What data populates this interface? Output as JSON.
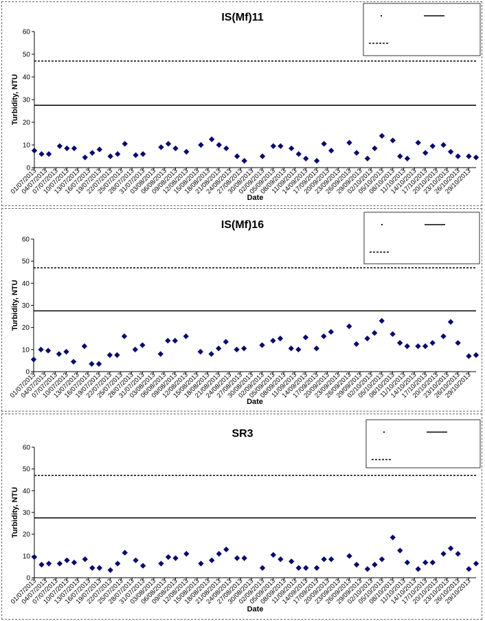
{
  "chart_data": [
    {
      "type": "scatter",
      "title": "IS(Mf)11",
      "xlabel": "Date",
      "ylabel": "Turbidity, NTU",
      "ylim": [
        0,
        60
      ],
      "yticks": [
        0,
        10,
        20,
        30,
        40,
        50,
        60
      ],
      "xlim": [
        "01/07/2013",
        "31/10/2013"
      ],
      "xtick_labels": [
        "01/07/2013",
        "04/07/2013",
        "07/07/2013",
        "10/07/2013",
        "13/07/2013",
        "16/07/2013",
        "19/07/2013",
        "22/07/2013",
        "25/07/2013",
        "28/07/2013",
        "31/07/2013",
        "03/08/2013",
        "06/08/2013",
        "09/08/2013",
        "12/08/2013",
        "15/08/2013",
        "18/08/2013",
        "21/08/2013",
        "24/08/2013",
        "27/08/2013",
        "30/08/2013",
        "02/09/2013",
        "05/09/2013",
        "08/09/2013",
        "11/09/2013",
        "14/09/2013",
        "17/09/2013",
        "20/09/2013",
        "23/09/2013",
        "26/09/2013",
        "29/09/2013",
        "02/10/2013",
        "05/10/2013",
        "08/10/2013",
        "11/10/2013",
        "14/10/2013",
        "17/10/2013",
        "20/10/2013",
        "23/10/2013",
        "26/10/2013",
        "29/10/2013"
      ],
      "grid": false,
      "legend_position": "top-right",
      "legend_entries": [
        "",
        "",
        ""
      ],
      "series": [
        {
          "marker": "diamond",
          "color": "#0a0a6e",
          "points": [
            {
              "x": "01/07/2013",
              "y": 7.5
            },
            {
              "x": "03/07/2013",
              "y": 6
            },
            {
              "x": "05/07/2013",
              "y": 6
            },
            {
              "x": "08/07/2013",
              "y": 9.5
            },
            {
              "x": "10/07/2013",
              "y": 8.5
            },
            {
              "x": "12/07/2013",
              "y": 8.5
            },
            {
              "x": "15/07/2013",
              "y": 4.5
            },
            {
              "x": "17/07/2013",
              "y": 6.5
            },
            {
              "x": "19/07/2013",
              "y": 8
            },
            {
              "x": "22/07/2013",
              "y": 5
            },
            {
              "x": "24/07/2013",
              "y": 6
            },
            {
              "x": "26/07/2013",
              "y": 10.5
            },
            {
              "x": "29/07/2013",
              "y": 5.5
            },
            {
              "x": "31/07/2013",
              "y": 6
            },
            {
              "x": "05/08/2013",
              "y": 9
            },
            {
              "x": "07/08/2013",
              "y": 10.5
            },
            {
              "x": "09/08/2013",
              "y": 8.5
            },
            {
              "x": "12/08/2013",
              "y": 7
            },
            {
              "x": "16/08/2013",
              "y": 10
            },
            {
              "x": "19/08/2013",
              "y": 12.5
            },
            {
              "x": "21/08/2013",
              "y": 10
            },
            {
              "x": "23/08/2013",
              "y": 8.5
            },
            {
              "x": "26/08/2013",
              "y": 5
            },
            {
              "x": "28/08/2013",
              "y": 3
            },
            {
              "x": "02/09/2013",
              "y": 5
            },
            {
              "x": "05/09/2013",
              "y": 9.5
            },
            {
              "x": "07/09/2013",
              "y": 9.5
            },
            {
              "x": "10/09/2013",
              "y": 8.5
            },
            {
              "x": "12/09/2013",
              "y": 6
            },
            {
              "x": "14/09/2013",
              "y": 4
            },
            {
              "x": "17/09/2013",
              "y": 3
            },
            {
              "x": "19/09/2013",
              "y": 10.5
            },
            {
              "x": "21/09/2013",
              "y": 7.5
            },
            {
              "x": "26/09/2013",
              "y": 11
            },
            {
              "x": "28/09/2013",
              "y": 6.5
            },
            {
              "x": "01/10/2013",
              "y": 4
            },
            {
              "x": "03/10/2013",
              "y": 8.5
            },
            {
              "x": "05/10/2013",
              "y": 14
            },
            {
              "x": "08/10/2013",
              "y": 12
            },
            {
              "x": "10/10/2013",
              "y": 5
            },
            {
              "x": "12/10/2013",
              "y": 4
            },
            {
              "x": "15/10/2013",
              "y": 11
            },
            {
              "x": "17/10/2013",
              "y": 6.5
            },
            {
              "x": "19/10/2013",
              "y": 9.5
            },
            {
              "x": "22/10/2013",
              "y": 10
            },
            {
              "x": "24/10/2013",
              "y": 7
            },
            {
              "x": "26/10/2013",
              "y": 5
            },
            {
              "x": "29/10/2013",
              "y": 5
            },
            {
              "x": "31/10/2013",
              "y": 4.5
            }
          ]
        }
      ],
      "reference_lines": [
        {
          "y": 27.5,
          "style": "solid"
        },
        {
          "y": 47,
          "style": "dashed"
        }
      ]
    },
    {
      "type": "scatter",
      "title": "IS(Mf)16",
      "xlabel": "Date",
      "ylabel": "Turbidity, NTU",
      "ylim": [
        0,
        60
      ],
      "yticks": [
        0,
        10,
        20,
        30,
        40,
        50,
        60
      ],
      "xlim": [
        "01/07/2013",
        "31/10/2013"
      ],
      "xtick_labels": [
        "01/07/2013",
        "04/07/2013",
        "07/07/2013",
        "10/07/2013",
        "13/07/2013",
        "16/07/2013",
        "19/07/2013",
        "22/07/2013",
        "25/07/2013",
        "28/07/2013",
        "31/07/2013",
        "03/08/2013",
        "06/08/2013",
        "09/08/2013",
        "12/08/2013",
        "15/08/2013",
        "18/08/2013",
        "21/08/2013",
        "24/08/2013",
        "27/08/2013",
        "30/08/2013",
        "02/09/2013",
        "05/09/2013",
        "08/09/2013",
        "11/09/2013",
        "14/09/2013",
        "17/09/2013",
        "20/09/2013",
        "23/09/2013",
        "26/09/2013",
        "29/09/2013",
        "02/10/2013",
        "05/10/2013",
        "08/10/2013",
        "11/10/2013",
        "14/10/2013",
        "17/10/2013",
        "20/10/2013",
        "23/10/2013",
        "26/10/2013",
        "29/10/2013"
      ],
      "grid": false,
      "legend_position": "top-right",
      "legend_entries": [
        "",
        "",
        ""
      ],
      "series": [
        {
          "marker": "diamond",
          "color": "#0a0a6e",
          "points": [
            {
              "x": "01/07/2013",
              "y": 5.5
            },
            {
              "x": "03/07/2013",
              "y": 10
            },
            {
              "x": "05/07/2013",
              "y": 9.5
            },
            {
              "x": "08/07/2013",
              "y": 8
            },
            {
              "x": "10/07/2013",
              "y": 9
            },
            {
              "x": "12/07/2013",
              "y": 4.5
            },
            {
              "x": "15/07/2013",
              "y": 11.5
            },
            {
              "x": "17/07/2013",
              "y": 3.5
            },
            {
              "x": "19/07/2013",
              "y": 3.5
            },
            {
              "x": "22/07/2013",
              "y": 7.5
            },
            {
              "x": "24/07/2013",
              "y": 7.5
            },
            {
              "x": "26/07/2013",
              "y": 16
            },
            {
              "x": "29/07/2013",
              "y": 10
            },
            {
              "x": "31/07/2013",
              "y": 12
            },
            {
              "x": "05/08/2013",
              "y": 8
            },
            {
              "x": "07/08/2013",
              "y": 14
            },
            {
              "x": "09/08/2013",
              "y": 14
            },
            {
              "x": "12/08/2013",
              "y": 16
            },
            {
              "x": "16/08/2013",
              "y": 9
            },
            {
              "x": "19/08/2013",
              "y": 8
            },
            {
              "x": "21/08/2013",
              "y": 10.5
            },
            {
              "x": "23/08/2013",
              "y": 13.5
            },
            {
              "x": "26/08/2013",
              "y": 10
            },
            {
              "x": "28/08/2013",
              "y": 10.5
            },
            {
              "x": "02/09/2013",
              "y": 12
            },
            {
              "x": "05/09/2013",
              "y": 14
            },
            {
              "x": "07/09/2013",
              "y": 15
            },
            {
              "x": "10/09/2013",
              "y": 10.5
            },
            {
              "x": "12/09/2013",
              "y": 10
            },
            {
              "x": "14/09/2013",
              "y": 15.5
            },
            {
              "x": "17/09/2013",
              "y": 10.5
            },
            {
              "x": "19/09/2013",
              "y": 16
            },
            {
              "x": "21/09/2013",
              "y": 18
            },
            {
              "x": "26/09/2013",
              "y": 20.5
            },
            {
              "x": "28/09/2013",
              "y": 12.5
            },
            {
              "x": "01/10/2013",
              "y": 15
            },
            {
              "x": "03/10/2013",
              "y": 17.5
            },
            {
              "x": "05/10/2013",
              "y": 23
            },
            {
              "x": "08/10/2013",
              "y": 17
            },
            {
              "x": "10/10/2013",
              "y": 13
            },
            {
              "x": "12/10/2013",
              "y": 11.5
            },
            {
              "x": "15/10/2013",
              "y": 11.5
            },
            {
              "x": "17/10/2013",
              "y": 11.5
            },
            {
              "x": "19/10/2013",
              "y": 13
            },
            {
              "x": "22/10/2013",
              "y": 16
            },
            {
              "x": "24/10/2013",
              "y": 22.5
            },
            {
              "x": "26/10/2013",
              "y": 13
            },
            {
              "x": "29/10/2013",
              "y": 7
            },
            {
              "x": "31/10/2013",
              "y": 7.5
            }
          ]
        }
      ],
      "reference_lines": [
        {
          "y": 27.5,
          "style": "solid"
        },
        {
          "y": 47,
          "style": "dashed"
        }
      ]
    },
    {
      "type": "scatter",
      "title": "SR3",
      "xlabel": "Date",
      "ylabel": "Turbidity, NTU",
      "ylim": [
        0,
        60
      ],
      "yticks": [
        0,
        10,
        20,
        30,
        40,
        50,
        60
      ],
      "xlim": [
        "01/07/2013",
        "31/10/2013"
      ],
      "xtick_labels": [
        "01/07/2013",
        "04/07/2013",
        "07/07/2013",
        "10/07/2013",
        "13/07/2013",
        "16/07/2013",
        "19/07/2013",
        "22/07/2013",
        "25/07/2013",
        "28/07/2013",
        "31/07/2013",
        "03/08/2013",
        "06/08/2013",
        "09/08/2013",
        "12/08/2013",
        "15/08/2013",
        "18/08/2013",
        "21/08/2013",
        "24/08/2013",
        "27/08/2013",
        "30/08/2013",
        "02/09/2013",
        "05/09/2013",
        "08/09/2013",
        "11/09/2013",
        "14/09/2013",
        "17/09/2013",
        "20/09/2013",
        "23/09/2013",
        "26/09/2013",
        "29/09/2013",
        "02/10/2013",
        "05/10/2013",
        "08/10/2013",
        "11/10/2013",
        "14/10/2013",
        "17/10/2013",
        "20/10/2013",
        "23/10/2013",
        "26/10/2013",
        "29/10/2013"
      ],
      "grid": false,
      "legend_position": "top-right",
      "legend_entries": [
        "",
        "",
        ""
      ],
      "series": [
        {
          "marker": "diamond",
          "color": "#0a0a6e",
          "points": [
            {
              "x": "01/07/2013",
              "y": 9.5
            },
            {
              "x": "03/07/2013",
              "y": 6
            },
            {
              "x": "05/07/2013",
              "y": 6.5
            },
            {
              "x": "08/07/2013",
              "y": 6.5
            },
            {
              "x": "10/07/2013",
              "y": 8
            },
            {
              "x": "12/07/2013",
              "y": 7
            },
            {
              "x": "15/07/2013",
              "y": 8.5
            },
            {
              "x": "17/07/2013",
              "y": 4.5
            },
            {
              "x": "19/07/2013",
              "y": 4.5
            },
            {
              "x": "22/07/2013",
              "y": 3.5
            },
            {
              "x": "24/07/2013",
              "y": 6.5
            },
            {
              "x": "26/07/2013",
              "y": 11.5
            },
            {
              "x": "29/07/2013",
              "y": 8
            },
            {
              "x": "31/07/2013",
              "y": 5.5
            },
            {
              "x": "05/08/2013",
              "y": 6.5
            },
            {
              "x": "07/08/2013",
              "y": 9.5
            },
            {
              "x": "09/08/2013",
              "y": 9
            },
            {
              "x": "12/08/2013",
              "y": 11
            },
            {
              "x": "16/08/2013",
              "y": 6.5
            },
            {
              "x": "19/08/2013",
              "y": 8
            },
            {
              "x": "21/08/2013",
              "y": 11
            },
            {
              "x": "23/08/2013",
              "y": 13
            },
            {
              "x": "26/08/2013",
              "y": 9
            },
            {
              "x": "28/08/2013",
              "y": 9
            },
            {
              "x": "02/09/2013",
              "y": 4.5
            },
            {
              "x": "05/09/2013",
              "y": 10.5
            },
            {
              "x": "07/09/2013",
              "y": 8.5
            },
            {
              "x": "10/09/2013",
              "y": 7.5
            },
            {
              "x": "12/09/2013",
              "y": 4.5
            },
            {
              "x": "14/09/2013",
              "y": 4.5
            },
            {
              "x": "17/09/2013",
              "y": 4.5
            },
            {
              "x": "19/09/2013",
              "y": 8.5
            },
            {
              "x": "21/09/2013",
              "y": 8.5
            },
            {
              "x": "26/09/2013",
              "y": 10
            },
            {
              "x": "28/09/2013",
              "y": 6
            },
            {
              "x": "01/10/2013",
              "y": 4
            },
            {
              "x": "03/10/2013",
              "y": 6
            },
            {
              "x": "05/10/2013",
              "y": 8.5
            },
            {
              "x": "08/10/2013",
              "y": 18.5
            },
            {
              "x": "10/10/2013",
              "y": 12.5
            },
            {
              "x": "12/10/2013",
              "y": 7
            },
            {
              "x": "15/10/2013",
              "y": 4
            },
            {
              "x": "17/10/2013",
              "y": 7
            },
            {
              "x": "19/10/2013",
              "y": 7
            },
            {
              "x": "22/10/2013",
              "y": 11
            },
            {
              "x": "24/10/2013",
              "y": 13.5
            },
            {
              "x": "26/10/2013",
              "y": 11
            },
            {
              "x": "29/10/2013",
              "y": 4
            },
            {
              "x": "31/10/2013",
              "y": 6.5
            }
          ]
        }
      ],
      "reference_lines": [
        {
          "y": 27.5,
          "style": "solid"
        },
        {
          "y": 47,
          "style": "dashed"
        }
      ]
    }
  ]
}
